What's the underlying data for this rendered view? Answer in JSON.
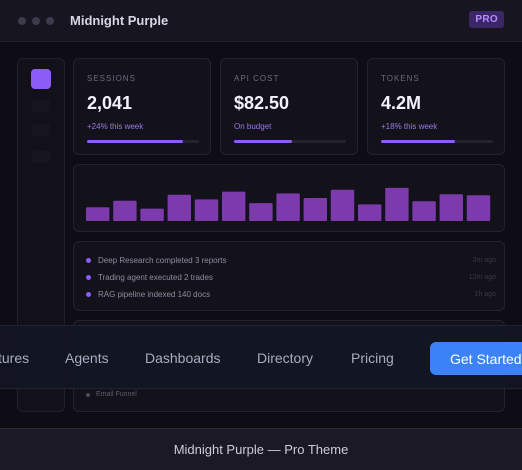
{
  "window": {
    "title": "Midnight Purple",
    "badge": "PRO"
  },
  "stats": [
    {
      "label": "SESSIONS",
      "value": "2,041",
      "sub": "+24% this week",
      "progress": 0.86
    },
    {
      "label": "API COST",
      "value": "$82.50",
      "sub": "On budget",
      "progress": 0.52
    },
    {
      "label": "TOKENS",
      "value": "4.2M",
      "sub": "+18% this week",
      "progress": 0.66
    }
  ],
  "chart_data": {
    "type": "bar",
    "values": [
      30,
      44,
      27,
      57,
      47,
      64,
      39,
      60,
      50,
      68,
      36,
      72,
      43,
      58,
      56
    ],
    "ylim": [
      0,
      100
    ],
    "color": "#7c3aad"
  },
  "activity": [
    {
      "text": "Deep Research completed 3 reports",
      "time": "2m ago"
    },
    {
      "text": "Trading agent executed 2 trades",
      "time": "12m ago"
    },
    {
      "text": "RAG pipeline indexed 140 docs",
      "time": "1h ago"
    }
  ],
  "funnel": {
    "label": "Email Funnel"
  },
  "nav": {
    "items": [
      "tures",
      "Agents",
      "Dashboards",
      "Directory",
      "Pricing"
    ],
    "cta": "Get Started"
  },
  "footer": {
    "text": "Midnight Purple — Pro Theme"
  },
  "colors": {
    "accent": "#8b5cf6",
    "bar": "#7c3aad",
    "cta": "#3b82f6",
    "badge_bg": "#3b2668"
  }
}
